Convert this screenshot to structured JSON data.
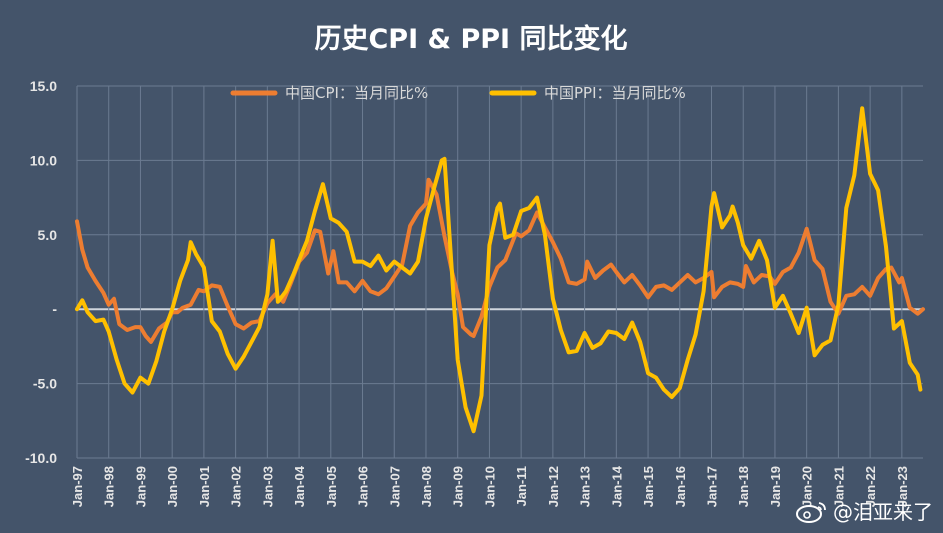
{
  "chart_data": {
    "type": "line",
    "title": "历史CPI & PPI 同比变化",
    "ylim": [
      -10,
      15
    ],
    "yticks": [
      15,
      10,
      5,
      0,
      -5,
      -10
    ],
    "ytick_labels": [
      "15.0",
      "10.0",
      "5.0",
      "-",
      "-5.0",
      "-10.0"
    ],
    "xtick_labels": [
      "Jan-97",
      "Jan-98",
      "Jan-99",
      "Jan-00",
      "Jan-01",
      "Jan-02",
      "Jan-03",
      "Jan-04",
      "Jan-05",
      "Jan-06",
      "Jan-07",
      "Jan-08",
      "Jan-09",
      "Jan-10",
      "Jan-11",
      "Jan-12",
      "Jan-13",
      "Jan-14",
      "Jan-15",
      "Jan-16",
      "Jan-17",
      "Jan-18",
      "Jan-19",
      "Jan-20",
      "Jan-21",
      "Jan-22",
      "Jan-23"
    ],
    "legend_position": "top",
    "grid": true,
    "x_start": "1997-01",
    "x_end": "2023-09",
    "series": [
      {
        "name": "中国CPI：当月同比%",
        "color": "#ed7d31",
        "points": [
          [
            "1997-01",
            5.9
          ],
          [
            "1997-03",
            4.0
          ],
          [
            "1997-05",
            2.8
          ],
          [
            "1997-08",
            1.9
          ],
          [
            "1997-11",
            1.1
          ],
          [
            "1998-01",
            0.3
          ],
          [
            "1998-03",
            0.7
          ],
          [
            "1998-05",
            -1.0
          ],
          [
            "1998-08",
            -1.4
          ],
          [
            "1998-11",
            -1.2
          ],
          [
            "1999-01",
            -1.2
          ],
          [
            "1999-03",
            -1.8
          ],
          [
            "1999-05",
            -2.2
          ],
          [
            "1999-08",
            -1.3
          ],
          [
            "1999-11",
            -0.9
          ],
          [
            "2000-01",
            -0.2
          ],
          [
            "2000-03",
            -0.2
          ],
          [
            "2000-05",
            0.1
          ],
          [
            "2000-08",
            0.3
          ],
          [
            "2000-11",
            1.3
          ],
          [
            "2001-01",
            1.2
          ],
          [
            "2001-04",
            1.6
          ],
          [
            "2001-07",
            1.5
          ],
          [
            "2001-10",
            0.2
          ],
          [
            "2002-01",
            -1.0
          ],
          [
            "2002-04",
            -1.3
          ],
          [
            "2002-07",
            -0.9
          ],
          [
            "2002-10",
            -0.8
          ],
          [
            "2003-01",
            0.4
          ],
          [
            "2003-04",
            1.0
          ],
          [
            "2003-07",
            0.5
          ],
          [
            "2003-10",
            1.8
          ],
          [
            "2004-01",
            3.2
          ],
          [
            "2004-04",
            3.8
          ],
          [
            "2004-07",
            5.3
          ],
          [
            "2004-09",
            5.2
          ],
          [
            "2004-12",
            2.4
          ],
          [
            "2005-02",
            3.9
          ],
          [
            "2005-04",
            1.8
          ],
          [
            "2005-07",
            1.8
          ],
          [
            "2005-10",
            1.2
          ],
          [
            "2006-01",
            1.9
          ],
          [
            "2006-04",
            1.2
          ],
          [
            "2006-07",
            1.0
          ],
          [
            "2006-10",
            1.4
          ],
          [
            "2007-01",
            2.2
          ],
          [
            "2007-04",
            3.0
          ],
          [
            "2007-07",
            5.6
          ],
          [
            "2007-10",
            6.5
          ],
          [
            "2008-01",
            7.1
          ],
          [
            "2008-02",
            8.7
          ],
          [
            "2008-05",
            7.7
          ],
          [
            "2008-08",
            4.9
          ],
          [
            "2008-11",
            2.4
          ],
          [
            "2009-01",
            1.0
          ],
          [
            "2009-03",
            -1.2
          ],
          [
            "2009-06",
            -1.7
          ],
          [
            "2009-07",
            -1.8
          ],
          [
            "2009-10",
            -0.5
          ],
          [
            "2010-01",
            1.5
          ],
          [
            "2010-04",
            2.8
          ],
          [
            "2010-07",
            3.3
          ],
          [
            "2010-11",
            5.1
          ],
          [
            "2011-01",
            4.9
          ],
          [
            "2011-04",
            5.3
          ],
          [
            "2011-07",
            6.5
          ],
          [
            "2011-10",
            5.5
          ],
          [
            "2012-01",
            4.5
          ],
          [
            "2012-04",
            3.4
          ],
          [
            "2012-07",
            1.8
          ],
          [
            "2012-10",
            1.7
          ],
          [
            "2013-01",
            2.0
          ],
          [
            "2013-02",
            3.2
          ],
          [
            "2013-05",
            2.1
          ],
          [
            "2013-08",
            2.6
          ],
          [
            "2013-11",
            3.0
          ],
          [
            "2014-01",
            2.5
          ],
          [
            "2014-04",
            1.8
          ],
          [
            "2014-07",
            2.3
          ],
          [
            "2014-10",
            1.6
          ],
          [
            "2015-01",
            0.8
          ],
          [
            "2015-04",
            1.5
          ],
          [
            "2015-07",
            1.6
          ],
          [
            "2015-10",
            1.3
          ],
          [
            "2016-01",
            1.8
          ],
          [
            "2016-04",
            2.3
          ],
          [
            "2016-07",
            1.8
          ],
          [
            "2016-10",
            2.1
          ],
          [
            "2017-01",
            2.5
          ],
          [
            "2017-02",
            0.8
          ],
          [
            "2017-05",
            1.5
          ],
          [
            "2017-08",
            1.8
          ],
          [
            "2017-11",
            1.7
          ],
          [
            "2018-01",
            1.5
          ],
          [
            "2018-02",
            2.9
          ],
          [
            "2018-05",
            1.8
          ],
          [
            "2018-08",
            2.3
          ],
          [
            "2018-11",
            2.2
          ],
          [
            "2019-01",
            1.7
          ],
          [
            "2019-04",
            2.5
          ],
          [
            "2019-07",
            2.8
          ],
          [
            "2019-10",
            3.8
          ],
          [
            "2020-01",
            5.4
          ],
          [
            "2020-04",
            3.3
          ],
          [
            "2020-07",
            2.7
          ],
          [
            "2020-10",
            0.5
          ],
          [
            "2021-01",
            -0.3
          ],
          [
            "2021-04",
            0.9
          ],
          [
            "2021-07",
            1.0
          ],
          [
            "2021-10",
            1.5
          ],
          [
            "2022-01",
            0.9
          ],
          [
            "2022-04",
            2.1
          ],
          [
            "2022-07",
            2.7
          ],
          [
            "2022-09",
            2.8
          ],
          [
            "2022-12",
            1.8
          ],
          [
            "2023-01",
            2.1
          ],
          [
            "2023-04",
            0.1
          ],
          [
            "2023-07",
            -0.3
          ],
          [
            "2023-09",
            0.0
          ]
        ]
      },
      {
        "name": "中国PPI：当月同比%",
        "color": "#ffc000",
        "points": [
          [
            "1997-01",
            0.0
          ],
          [
            "1997-03",
            0.6
          ],
          [
            "1997-05",
            -0.2
          ],
          [
            "1997-08",
            -0.8
          ],
          [
            "1997-11",
            -0.7
          ],
          [
            "1998-01",
            -1.5
          ],
          [
            "1998-04",
            -3.4
          ],
          [
            "1998-07",
            -5.0
          ],
          [
            "1998-10",
            -5.6
          ],
          [
            "1999-01",
            -4.6
          ],
          [
            "1999-04",
            -5.0
          ],
          [
            "1999-07",
            -3.5
          ],
          [
            "1999-10",
            -1.5
          ],
          [
            "2000-01",
            0.0
          ],
          [
            "2000-04",
            1.9
          ],
          [
            "2000-07",
            3.3
          ],
          [
            "2000-08",
            4.5
          ],
          [
            "2000-10",
            3.7
          ],
          [
            "2001-01",
            2.8
          ],
          [
            "2001-04",
            -0.8
          ],
          [
            "2001-07",
            -1.5
          ],
          [
            "2001-10",
            -3.0
          ],
          [
            "2002-01",
            -4.0
          ],
          [
            "2002-04",
            -3.2
          ],
          [
            "2002-07",
            -2.2
          ],
          [
            "2002-10",
            -1.2
          ],
          [
            "2003-01",
            1.0
          ],
          [
            "2003-03",
            4.6
          ],
          [
            "2003-05",
            0.5
          ],
          [
            "2003-08",
            1.2
          ],
          [
            "2003-11",
            2.4
          ],
          [
            "2004-01",
            3.3
          ],
          [
            "2004-04",
            4.6
          ],
          [
            "2004-07",
            6.6
          ],
          [
            "2004-10",
            8.4
          ],
          [
            "2005-01",
            6.1
          ],
          [
            "2005-04",
            5.8
          ],
          [
            "2005-07",
            5.2
          ],
          [
            "2005-10",
            3.2
          ],
          [
            "2006-01",
            3.2
          ],
          [
            "2006-04",
            2.9
          ],
          [
            "2006-07",
            3.6
          ],
          [
            "2006-10",
            2.6
          ],
          [
            "2007-01",
            3.2
          ],
          [
            "2007-04",
            2.8
          ],
          [
            "2007-07",
            2.4
          ],
          [
            "2007-10",
            3.2
          ],
          [
            "2008-01",
            6.1
          ],
          [
            "2008-04",
            8.1
          ],
          [
            "2008-07",
            10.0
          ],
          [
            "2008-08",
            10.1
          ],
          [
            "2008-11",
            2.0
          ],
          [
            "2009-01",
            -3.4
          ],
          [
            "2009-04",
            -6.6
          ],
          [
            "2009-07",
            -8.2
          ],
          [
            "2009-10",
            -5.8
          ],
          [
            "2010-01",
            4.3
          ],
          [
            "2010-04",
            6.8
          ],
          [
            "2010-05",
            7.1
          ],
          [
            "2010-07",
            4.8
          ],
          [
            "2010-10",
            5.0
          ],
          [
            "2011-01",
            6.6
          ],
          [
            "2011-04",
            6.8
          ],
          [
            "2011-07",
            7.5
          ],
          [
            "2011-10",
            5.0
          ],
          [
            "2012-01",
            0.7
          ],
          [
            "2012-04",
            -1.4
          ],
          [
            "2012-07",
            -2.9
          ],
          [
            "2012-10",
            -2.8
          ],
          [
            "2013-01",
            -1.6
          ],
          [
            "2013-04",
            -2.6
          ],
          [
            "2013-07",
            -2.3
          ],
          [
            "2013-10",
            -1.5
          ],
          [
            "2014-01",
            -1.6
          ],
          [
            "2014-04",
            -2.0
          ],
          [
            "2014-07",
            -0.9
          ],
          [
            "2014-10",
            -2.2
          ],
          [
            "2015-01",
            -4.3
          ],
          [
            "2015-04",
            -4.6
          ],
          [
            "2015-07",
            -5.4
          ],
          [
            "2015-10",
            -5.9
          ],
          [
            "2016-01",
            -5.3
          ],
          [
            "2016-04",
            -3.4
          ],
          [
            "2016-07",
            -1.7
          ],
          [
            "2016-10",
            1.2
          ],
          [
            "2017-01",
            6.9
          ],
          [
            "2017-02",
            7.8
          ],
          [
            "2017-05",
            5.5
          ],
          [
            "2017-08",
            6.3
          ],
          [
            "2017-09",
            6.9
          ],
          [
            "2017-11",
            5.8
          ],
          [
            "2018-01",
            4.3
          ],
          [
            "2018-04",
            3.4
          ],
          [
            "2018-07",
            4.6
          ],
          [
            "2018-10",
            3.3
          ],
          [
            "2019-01",
            0.1
          ],
          [
            "2019-04",
            0.9
          ],
          [
            "2019-07",
            -0.3
          ],
          [
            "2019-10",
            -1.6
          ],
          [
            "2020-01",
            0.1
          ],
          [
            "2020-04",
            -3.1
          ],
          [
            "2020-07",
            -2.4
          ],
          [
            "2020-10",
            -2.1
          ],
          [
            "2021-01",
            0.3
          ],
          [
            "2021-04",
            6.8
          ],
          [
            "2021-07",
            9.0
          ],
          [
            "2021-10",
            13.5
          ],
          [
            "2022-01",
            9.1
          ],
          [
            "2022-04",
            8.0
          ],
          [
            "2022-07",
            4.2
          ],
          [
            "2022-10",
            -1.3
          ],
          [
            "2023-01",
            -0.8
          ],
          [
            "2023-04",
            -3.6
          ],
          [
            "2023-07",
            -4.4
          ],
          [
            "2023-08",
            -5.4
          ]
        ]
      }
    ]
  },
  "watermark": {
    "icon": "weibo-icon",
    "text": "@泪亚来了"
  }
}
